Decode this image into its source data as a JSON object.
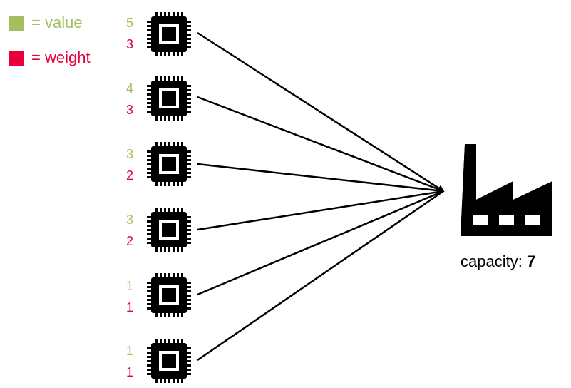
{
  "legend": {
    "value_label": "= value",
    "weight_label": "= weight"
  },
  "colors": {
    "value": "#a4bf5e",
    "weight": "#e8003d",
    "line": "#000000"
  },
  "items": [
    {
      "value": "5",
      "weight": "3",
      "icon": "cpu-chip-icon"
    },
    {
      "value": "4",
      "weight": "3",
      "icon": "cpu-chip-icon"
    },
    {
      "value": "3",
      "weight": "2",
      "icon": "cpu-chip-icon"
    },
    {
      "value": "3",
      "weight": "2",
      "icon": "cpu-chip-icon"
    },
    {
      "value": "1",
      "weight": "1",
      "icon": "cpu-chip-icon"
    },
    {
      "value": "1",
      "weight": "1",
      "icon": "cpu-chip-icon"
    }
  ],
  "knapsack": {
    "icon": "factory-icon",
    "capacity_label": "capacity: ",
    "capacity_value": "7"
  }
}
